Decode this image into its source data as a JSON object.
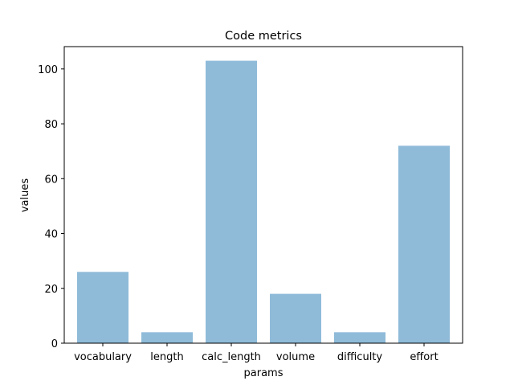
{
  "chart_data": {
    "type": "bar",
    "title": "Code metrics",
    "xlabel": "params",
    "ylabel": "values",
    "categories": [
      "vocabulary",
      "length",
      "calc_length",
      "volume",
      "difficulty",
      "effort"
    ],
    "values": [
      26,
      4,
      103,
      18,
      4,
      72
    ],
    "ylim": [
      0,
      108.15
    ],
    "yticks": [
      0,
      20,
      40,
      60,
      80,
      100
    ],
    "grid": false,
    "legend": "none",
    "bar_color": "#8fbbd9"
  }
}
